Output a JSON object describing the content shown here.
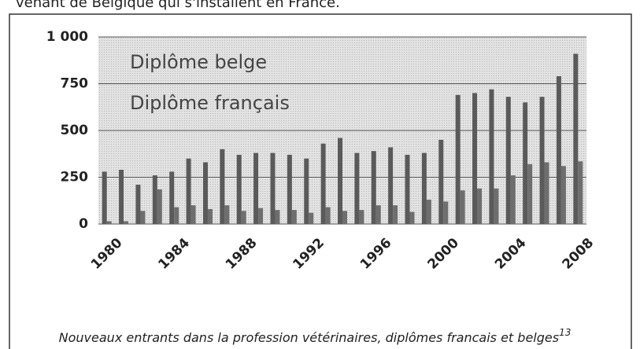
{
  "header_text": "venant de Belgique qui s'installent en France.",
  "caption": "Nouveaux entrants dans la profession vétérinaires, diplômes francais et belges",
  "caption_note": "13",
  "chart_data": {
    "type": "bar",
    "categories": [
      "1980",
      null,
      null,
      null,
      "1984",
      null,
      null,
      null,
      "1988",
      null,
      null,
      null,
      "1992",
      null,
      null,
      null,
      "1996",
      null,
      null,
      null,
      "2000",
      null,
      null,
      null,
      "2004",
      null,
      null,
      null,
      "2008"
    ],
    "series": [
      {
        "name": "Diplôme belge",
        "color": "#5a5a5a",
        "values": [
          280,
          290,
          210,
          260,
          280,
          350,
          330,
          400,
          370,
          380,
          380,
          370,
          350,
          430,
          460,
          380,
          390,
          410,
          370,
          380,
          450,
          690,
          700,
          720,
          680,
          650,
          680,
          790,
          910
        ]
      },
      {
        "name": "Diplôme français",
        "color": "#6e6e6e",
        "values": [
          15,
          15,
          70,
          185,
          90,
          100,
          80,
          100,
          70,
          85,
          75,
          75,
          60,
          90,
          70,
          75,
          100,
          100,
          65,
          130,
          120,
          180,
          190,
          190,
          260,
          320,
          330,
          310,
          335
        ]
      }
    ],
    "ylim": [
      0,
      1000
    ],
    "yticks": [
      0,
      250,
      500,
      750,
      {
        "value": 1000,
        "label": "1 000"
      }
    ],
    "grid": true
  }
}
